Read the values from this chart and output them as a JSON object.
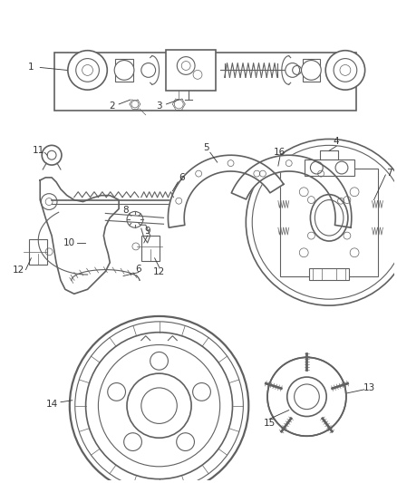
{
  "bg_color": "#ffffff",
  "line_color": "#606060",
  "label_color": "#333333",
  "fig_width": 4.38,
  "fig_height": 5.33
}
